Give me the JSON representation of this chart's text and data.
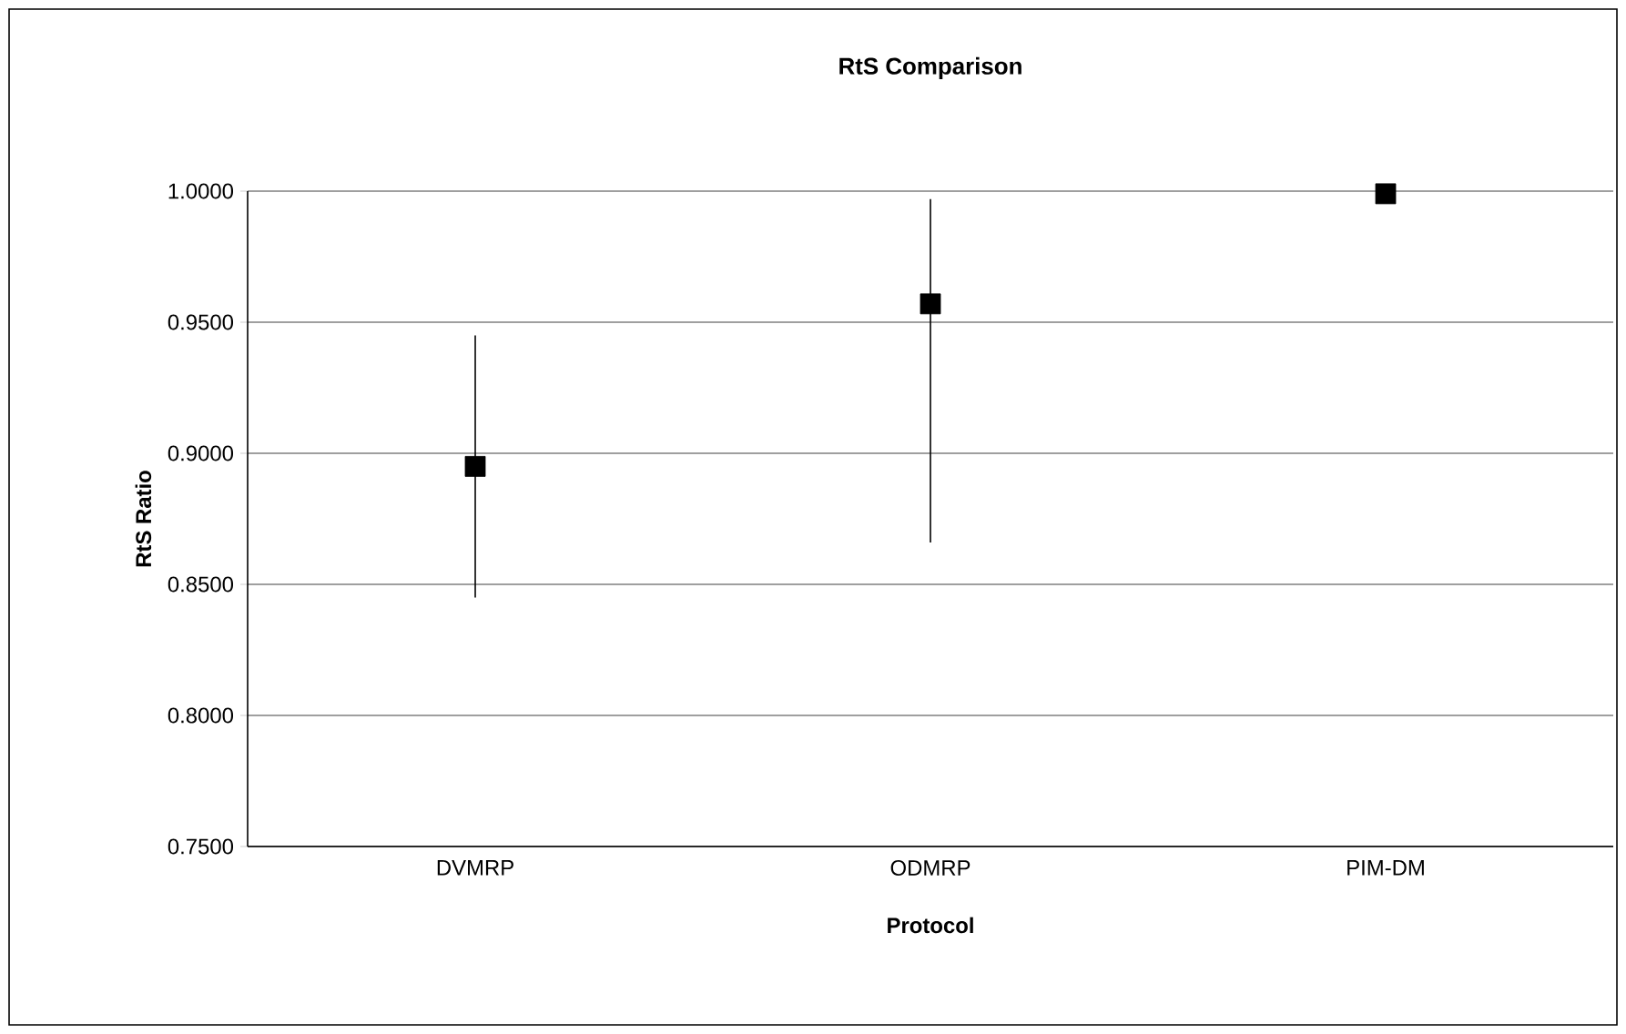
{
  "chart_data": {
    "type": "scatter",
    "title": "RtS Comparison",
    "xlabel": "Protocol",
    "ylabel": "RtS Ratio",
    "categories": [
      "DVMRP",
      "ODMRP",
      "PIM-DM"
    ],
    "series": [
      {
        "color": "#000000",
        "values": [
          0.895,
          0.957,
          0.999
        ],
        "errors": [
          0.05,
          [
            0.866,
            0.997
          ],
          null
        ]
      }
    ],
    "ylim": [
      0.75,
      1.0
    ],
    "yticks": [
      {
        "value": 0.75,
        "label": "0.7500"
      },
      {
        "value": 0.8,
        "label": "0.8000"
      },
      {
        "value": 0.85,
        "label": "0.8500"
      },
      {
        "value": 0.9,
        "label": "0.9000"
      },
      {
        "value": 0.95,
        "label": "0.9500"
      },
      {
        "value": 1.0,
        "label": "1.0000"
      }
    ],
    "grid": "y",
    "marker": "square"
  }
}
